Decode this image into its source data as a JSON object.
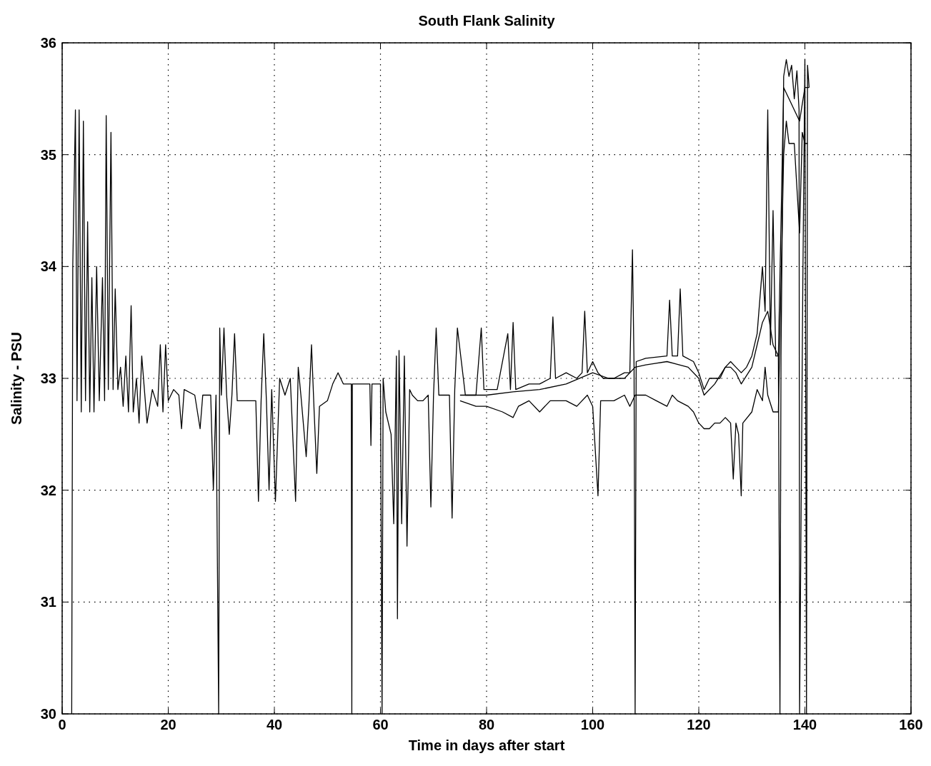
{
  "chart_data": {
    "type": "line",
    "title": "South Flank Salinity",
    "xlabel": "Time in days after start",
    "ylabel": "Salinity - PSU",
    "xlim": [
      0,
      160
    ],
    "ylim": [
      30,
      36
    ],
    "xticks": [
      0,
      20,
      40,
      60,
      80,
      100,
      120,
      140,
      160
    ],
    "yticks": [
      30,
      31,
      32,
      33,
      34,
      35,
      36
    ],
    "grid": true,
    "line_style": "solid",
    "marker": "none",
    "series": [
      {
        "color": "#000000",
        "x": [
          1.8,
          2.0,
          2.5,
          2.8,
          3.2,
          3.6,
          4.0,
          4.4,
          4.8,
          5.2,
          5.6,
          6.0,
          6.5,
          7.0,
          7.6,
          8.0,
          8.3,
          8.7,
          9.2,
          9.6,
          10,
          10.5,
          11,
          11.5,
          12,
          12.5,
          13,
          13.4,
          14,
          14.5,
          15,
          16,
          17,
          18,
          18.5,
          19,
          19.5,
          20,
          21,
          22,
          22.5,
          23,
          25,
          26,
          26.5,
          28,
          28.5,
          29,
          29.5,
          29.7,
          30,
          30.5,
          31,
          31.5,
          32,
          32.5,
          33,
          35,
          36.5,
          37,
          37.5,
          38,
          38.5,
          39,
          39.5,
          40.2,
          41,
          42,
          43,
          44,
          44.5,
          45,
          46,
          46.5,
          47,
          47.5,
          48,
          48.5,
          50,
          51,
          52,
          53,
          54.5,
          54.6,
          54.7,
          57,
          58,
          58.2,
          58.4,
          60,
          60.3,
          60.5,
          61,
          62,
          62.5,
          63,
          63.2,
          63.5,
          64,
          64.5,
          65,
          65.5,
          66,
          67,
          68,
          69,
          69.5,
          70,
          70.5,
          71,
          73,
          73.5,
          74,
          74.5,
          76,
          78,
          79,
          79.5,
          82,
          84,
          84.5,
          85,
          85.5,
          88,
          90,
          92,
          92.5,
          93,
          95,
          97,
          98,
          98.5,
          99,
          100,
          101,
          102,
          104,
          106,
          107,
          107.5,
          107.8,
          108,
          108.2,
          110,
          114,
          114.5,
          115,
          116,
          116.5,
          117,
          119,
          120,
          121,
          122,
          124,
          125,
          126,
          127,
          128,
          129,
          130,
          131,
          132,
          132.5,
          133,
          133.5,
          134,
          134.5,
          135,
          135.3,
          135.5,
          136,
          136.5,
          137,
          137.5,
          138,
          138.5,
          138.9,
          139.0,
          139.6,
          140,
          140.3,
          140.5,
          140.8
        ],
        "values": [
          30,
          34.0,
          35.4,
          32.8,
          35.4,
          32.7,
          35.3,
          32.8,
          34.4,
          32.7,
          33.9,
          32.7,
          34.0,
          32.8,
          33.9,
          32.8,
          35.35,
          32.9,
          35.2,
          32.9,
          33.8,
          32.9,
          33.1,
          32.75,
          33.2,
          32.7,
          33.65,
          32.7,
          33.0,
          32.6,
          33.2,
          32.6,
          32.9,
          32.75,
          33.3,
          32.7,
          33.3,
          32.8,
          32.9,
          32.85,
          32.55,
          32.9,
          32.85,
          32.55,
          32.85,
          32.85,
          32.0,
          32.85,
          30.0,
          33.45,
          32.85,
          33.45,
          32.85,
          32.5,
          32.85,
          33.4,
          32.8,
          32.8,
          32.8,
          31.9,
          32.8,
          33.4,
          32.8,
          32.0,
          32.9,
          31.9,
          33.0,
          32.85,
          33.0,
          31.9,
          33.1,
          32.85,
          32.3,
          32.75,
          33.3,
          32.7,
          32.15,
          32.75,
          32.8,
          32.95,
          33.05,
          32.95,
          32.95,
          30.0,
          32.95,
          32.95,
          32.95,
          32.4,
          32.95,
          32.95,
          30.0,
          33.0,
          32.7,
          32.5,
          31.7,
          33.2,
          30.85,
          33.25,
          31.7,
          33.2,
          31.5,
          32.9,
          32.85,
          32.8,
          32.8,
          32.85,
          31.85,
          32.85,
          33.45,
          32.85,
          32.85,
          31.75,
          32.9,
          33.45,
          32.85,
          32.85,
          33.45,
          32.9,
          32.9,
          33.4,
          32.9,
          33.5,
          32.9,
          32.95,
          32.95,
          33.0,
          33.55,
          33.0,
          33.05,
          33.0,
          33.05,
          33.6,
          33.05,
          33.15,
          33.05,
          33.0,
          33.0,
          33.05,
          33.05,
          34.15,
          33.1,
          30.0,
          33.15,
          33.18,
          33.2,
          33.7,
          33.2,
          33.2,
          33.8,
          33.2,
          33.15,
          33.05,
          32.9,
          33.0,
          33.0,
          33.1,
          33.15,
          33.1,
          33.05,
          33.1,
          33.2,
          33.4,
          34.0,
          33.6,
          35.4,
          33.3,
          34.5,
          33.2,
          33.2,
          30.0,
          33.2,
          35.7,
          35.85,
          35.7,
          35.8,
          35.5,
          35.75,
          35.4,
          30.0,
          33.8,
          35.85,
          30.0,
          35.8,
          35.6
        ]
      },
      {
        "color": "#000000",
        "x": [
          75,
          80,
          85,
          90,
          95,
          100,
          103,
          106,
          108,
          110,
          114,
          118,
          120,
          121,
          123,
          125,
          126,
          127,
          128,
          130,
          131,
          132,
          133,
          134,
          135,
          136,
          137,
          138,
          139,
          140,
          140.8
        ],
        "values": [
          32.85,
          32.85,
          32.88,
          32.9,
          32.95,
          33.05,
          33.0,
          33.0,
          33.1,
          33.12,
          33.15,
          33.1,
          33.0,
          32.85,
          32.95,
          33.1,
          33.1,
          33.05,
          32.95,
          33.1,
          33.3,
          33.5,
          33.6,
          33.3,
          33.2,
          35.6,
          35.5,
          35.4,
          35.3,
          35.6,
          35.6
        ]
      },
      {
        "color": "#000000",
        "x": [
          75,
          78,
          80,
          83,
          85,
          86,
          88,
          90,
          92,
          95,
          97,
          99,
          100,
          101,
          101.5,
          104,
          106,
          107,
          108,
          110,
          112,
          114,
          115,
          116,
          118,
          119,
          120,
          121,
          122,
          123,
          124,
          125,
          126,
          126.5,
          127,
          127.5,
          128,
          128.3,
          130,
          131,
          132,
          132.5,
          133,
          134,
          135,
          136,
          136.5,
          137,
          138,
          139,
          139.5,
          140,
          140.5
        ],
        "values": [
          32.8,
          32.75,
          32.75,
          32.7,
          32.65,
          32.75,
          32.8,
          32.7,
          32.8,
          32.8,
          32.75,
          32.85,
          32.75,
          31.95,
          32.8,
          32.8,
          32.85,
          32.75,
          32.85,
          32.85,
          32.8,
          32.75,
          32.85,
          32.8,
          32.75,
          32.7,
          32.6,
          32.55,
          32.55,
          32.6,
          32.6,
          32.65,
          32.6,
          32.1,
          32.6,
          32.5,
          31.95,
          32.6,
          32.7,
          32.9,
          32.8,
          33.1,
          32.85,
          32.7,
          32.7,
          35.0,
          35.3,
          35.1,
          35.1,
          34.3,
          35.2,
          35.1,
          35.1
        ]
      }
    ]
  }
}
